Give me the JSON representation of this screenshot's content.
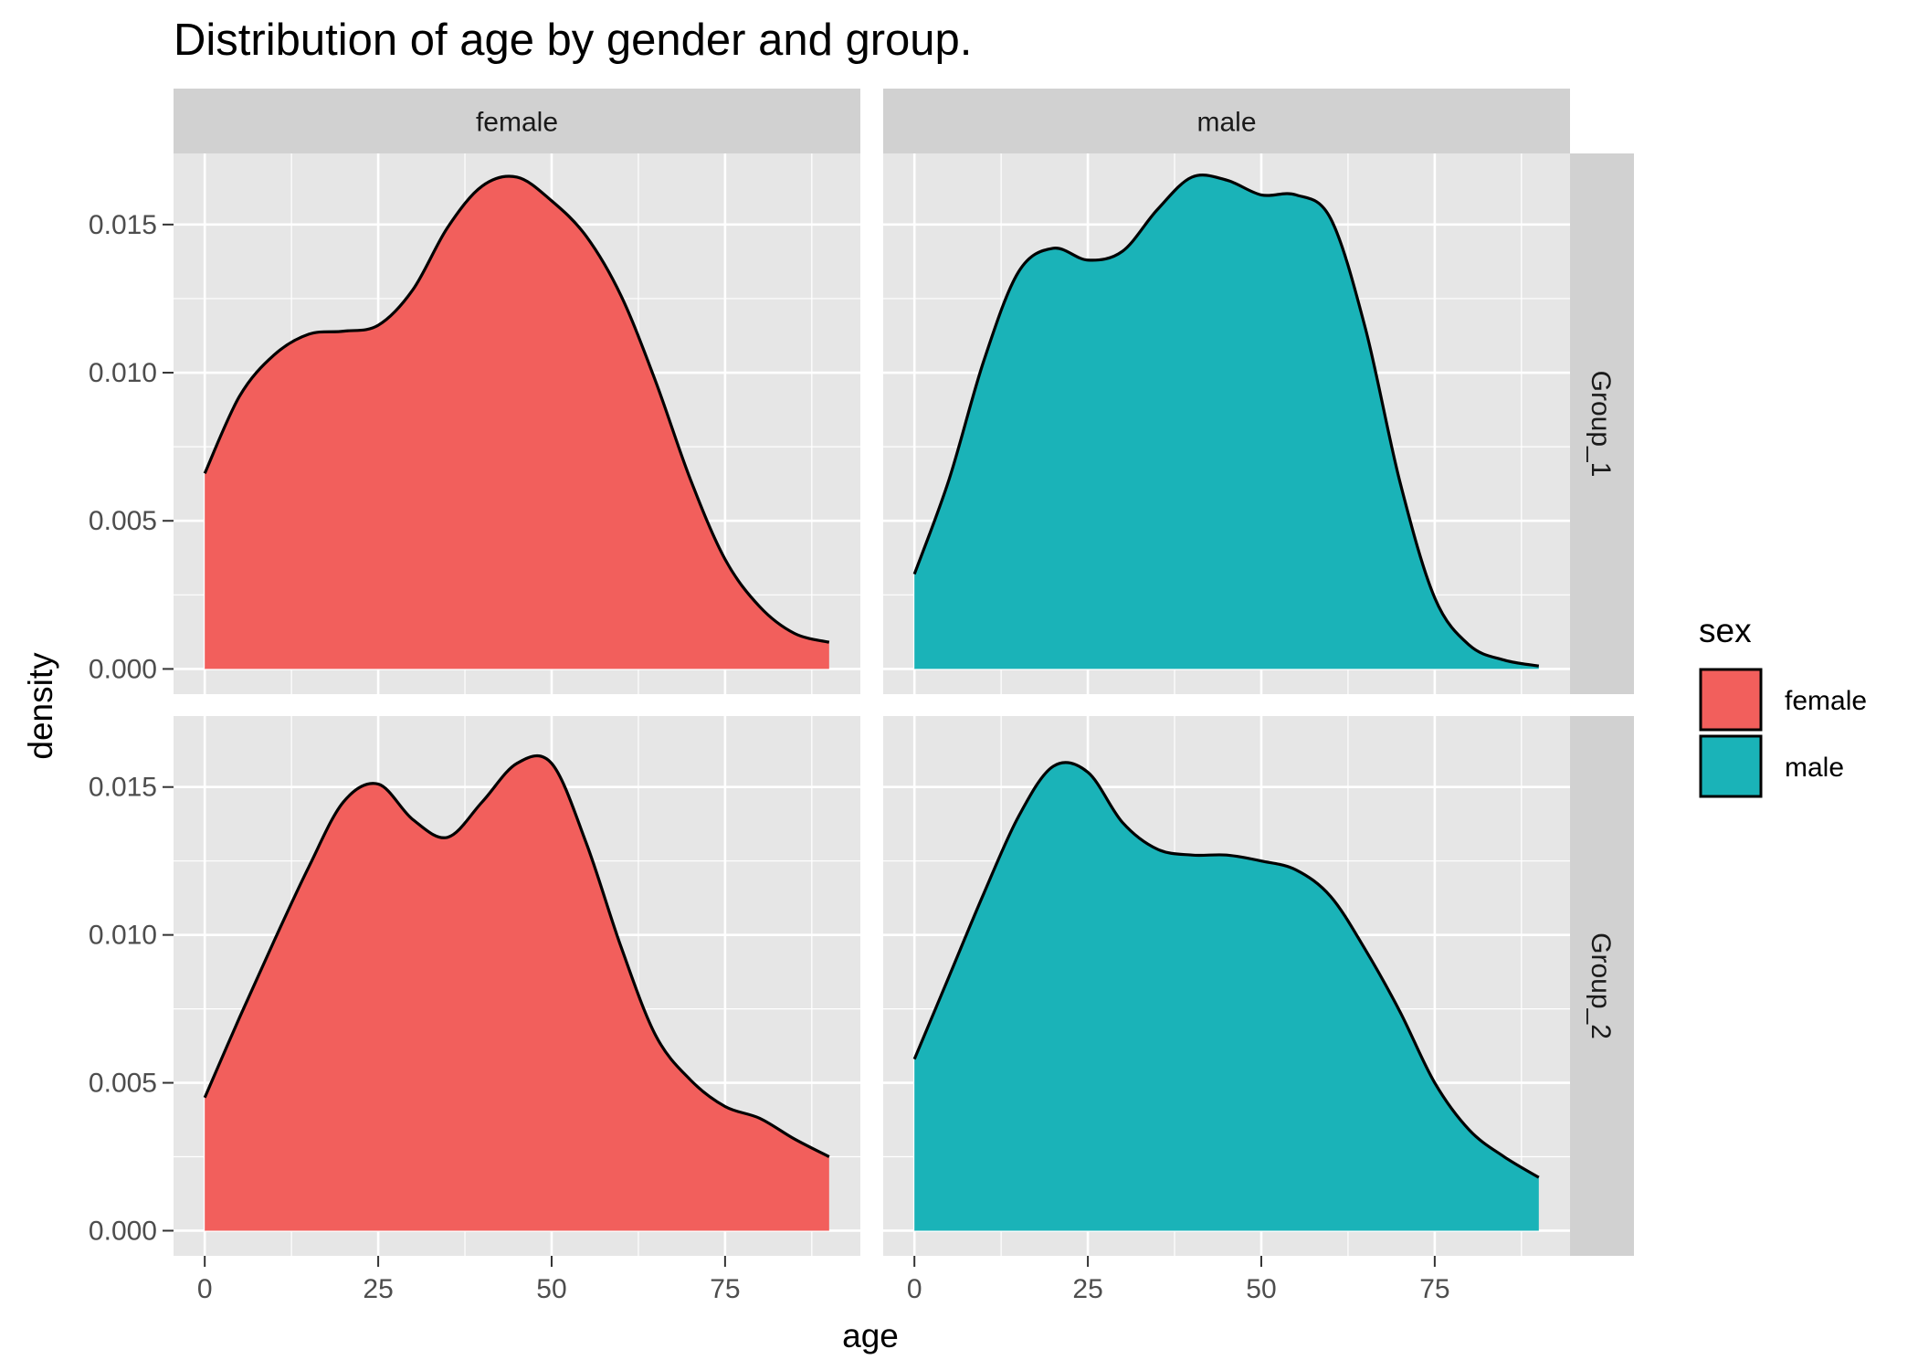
{
  "chart_data": {
    "type": "area",
    "title": "Distribution of age by gender and group.",
    "xlabel": "age",
    "ylabel": "density",
    "xlim": [
      -4.5,
      94.5
    ],
    "ylim": [
      -0.00085,
      0.0174
    ],
    "x_ticks": [
      0,
      25,
      50,
      75
    ],
    "x_tick_labels": [
      "0",
      "25",
      "50",
      "75"
    ],
    "y_ticks": [
      0,
      0.005,
      0.01,
      0.015
    ],
    "y_tick_labels": [
      "0.000",
      "0.005",
      "0.010",
      "0.015"
    ],
    "columns": [
      "female",
      "male"
    ],
    "rows": [
      "Group_1",
      "Group_2"
    ],
    "grid": true,
    "legend": {
      "title": "sex",
      "position": "right",
      "entries": [
        {
          "label": "female",
          "color": "#F25F5C"
        },
        {
          "label": "male",
          "color": "#1AB3B8"
        }
      ]
    },
    "colors": {
      "female": "#F25F5C",
      "male": "#1AB3B8",
      "outline": "#000000",
      "panel": "#E6E6E6",
      "strip": "#D1D1D1",
      "grid": "#FFFFFF"
    },
    "panels": [
      {
        "column": "female",
        "row": "Group_1",
        "fill": "female",
        "x": [
          0,
          5,
          10,
          15,
          20,
          25,
          30,
          35,
          40,
          45,
          50,
          55,
          60,
          65,
          70,
          75,
          80,
          85,
          90
        ],
        "y": [
          0.0066,
          0.0092,
          0.0106,
          0.0113,
          0.0114,
          0.0116,
          0.0128,
          0.0149,
          0.0163,
          0.0166,
          0.0158,
          0.0146,
          0.0126,
          0.0097,
          0.0064,
          0.0037,
          0.0021,
          0.0012,
          0.0009
        ]
      },
      {
        "column": "male",
        "row": "Group_1",
        "fill": "male",
        "x": [
          0,
          5,
          10,
          15,
          20,
          25,
          30,
          35,
          40,
          45,
          50,
          55,
          60,
          65,
          70,
          75,
          80,
          85,
          90
        ],
        "y": [
          0.0032,
          0.0064,
          0.0104,
          0.0134,
          0.0142,
          0.0138,
          0.0141,
          0.0155,
          0.0166,
          0.0165,
          0.016,
          0.016,
          0.0152,
          0.0115,
          0.0063,
          0.0024,
          0.0008,
          0.0003,
          0.0001
        ]
      },
      {
        "column": "female",
        "row": "Group_2",
        "fill": "female",
        "x": [
          0,
          5,
          10,
          15,
          20,
          25,
          30,
          35,
          40,
          45,
          50,
          55,
          60,
          65,
          70,
          75,
          80,
          85,
          90
        ],
        "y": [
          0.0045,
          0.0072,
          0.0098,
          0.0123,
          0.0145,
          0.0151,
          0.0139,
          0.0133,
          0.0145,
          0.0158,
          0.0158,
          0.0131,
          0.0096,
          0.0066,
          0.0051,
          0.0042,
          0.0038,
          0.0031,
          0.0025
        ]
      },
      {
        "column": "male",
        "row": "Group_2",
        "fill": "male",
        "x": [
          0,
          5,
          10,
          15,
          20,
          25,
          30,
          35,
          40,
          45,
          50,
          55,
          60,
          65,
          70,
          75,
          80,
          85,
          90
        ],
        "y": [
          0.0058,
          0.0086,
          0.0114,
          0.014,
          0.0157,
          0.0155,
          0.0138,
          0.0129,
          0.0127,
          0.0127,
          0.0125,
          0.0122,
          0.0113,
          0.0095,
          0.0074,
          0.005,
          0.0034,
          0.0025,
          0.0018
        ]
      }
    ]
  }
}
